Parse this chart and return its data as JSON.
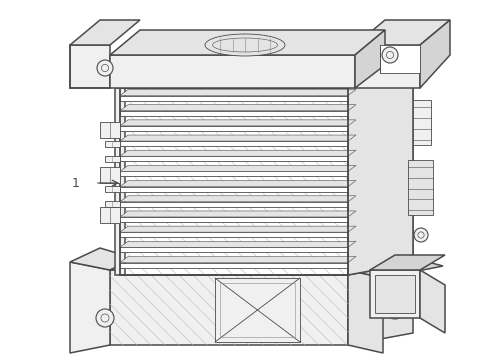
{
  "background_color": "#ffffff",
  "line_color": "#4a4a4a",
  "line_color_light": "#888888",
  "label_text": "1",
  "lw_main": 1.1,
  "lw_thin": 0.6,
  "lw_xtra": 0.4
}
